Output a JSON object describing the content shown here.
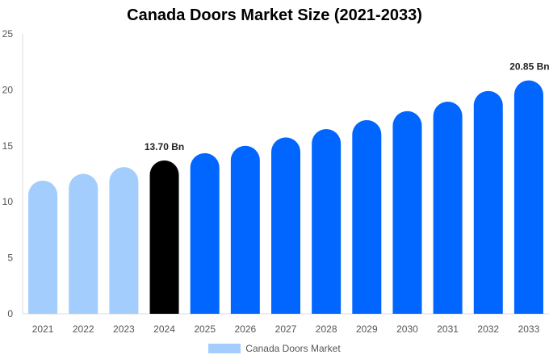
{
  "chart_data": {
    "type": "bar",
    "title": "Canada Doors Market Size (2021-2033)",
    "categories": [
      "2021",
      "2022",
      "2023",
      "2024",
      "2025",
      "2026",
      "2027",
      "2028",
      "2029",
      "2030",
      "2031",
      "2032",
      "2033"
    ],
    "series": [
      {
        "name": "Canada Doors Market",
        "values": [
          11.9,
          12.5,
          13.1,
          13.7,
          14.35,
          15.0,
          15.75,
          16.5,
          17.3,
          18.1,
          18.95,
          19.9,
          20.85
        ]
      }
    ],
    "data_labels": {
      "3": "13.70 Bn",
      "12": "20.85 Bn"
    },
    "ylim": [
      0,
      25
    ],
    "yticks": [
      0,
      5,
      10,
      15,
      20,
      25
    ],
    "xlabel": "",
    "ylabel": "",
    "grid": false,
    "legend": "bottom",
    "colors": {
      "historical": "#a3cdfc",
      "current": "#000000",
      "forecast": "#0066ff",
      "legend": "#a3cdfc"
    }
  }
}
